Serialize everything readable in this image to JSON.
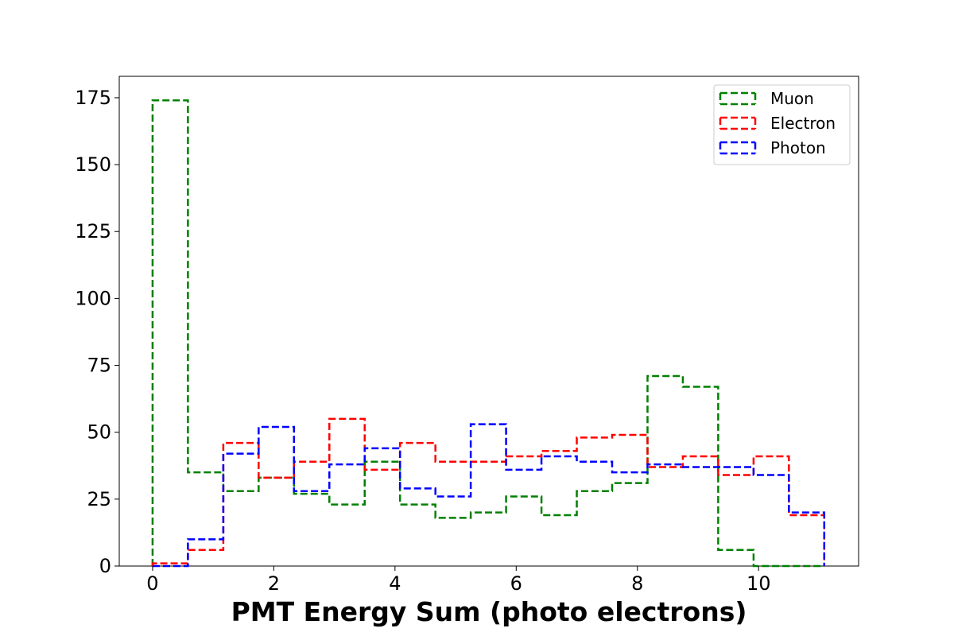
{
  "chart_data": {
    "type": "histogram",
    "title": "",
    "xlabel": "PMT Energy Sum (photo electrons)",
    "ylabel": "",
    "xlim": [
      -0.55,
      11.65
    ],
    "ylim": [
      0,
      183
    ],
    "xticks": [
      0,
      2,
      4,
      6,
      8,
      10
    ],
    "yticks": [
      0,
      25,
      50,
      75,
      100,
      125,
      150,
      175
    ],
    "bin_edges": [
      0.0,
      0.583,
      1.167,
      1.75,
      2.333,
      2.917,
      3.5,
      4.083,
      4.667,
      5.25,
      5.833,
      6.417,
      7.0,
      7.583,
      8.167,
      8.75,
      9.333,
      9.917,
      10.5,
      11.083
    ],
    "series": [
      {
        "name": "Muon",
        "color": "#008000",
        "values": [
          174,
          35,
          28,
          33,
          27,
          23,
          39,
          23,
          18,
          20,
          26,
          19,
          28,
          31,
          71,
          67,
          6,
          0,
          0
        ]
      },
      {
        "name": "Electron",
        "color": "#ff0000",
        "values": [
          1,
          6,
          46,
          33,
          39,
          55,
          36,
          46,
          39,
          39,
          41,
          43,
          48,
          49,
          37,
          41,
          34,
          41,
          19
        ]
      },
      {
        "name": "Photon",
        "color": "#0000ff",
        "values": [
          0,
          10,
          42,
          52,
          28,
          38,
          44,
          29,
          26,
          53,
          36,
          41,
          39,
          35,
          38,
          37,
          37,
          34,
          20
        ]
      }
    ],
    "legend_position": "top-right",
    "line_style": "dashed",
    "grid": false
  }
}
